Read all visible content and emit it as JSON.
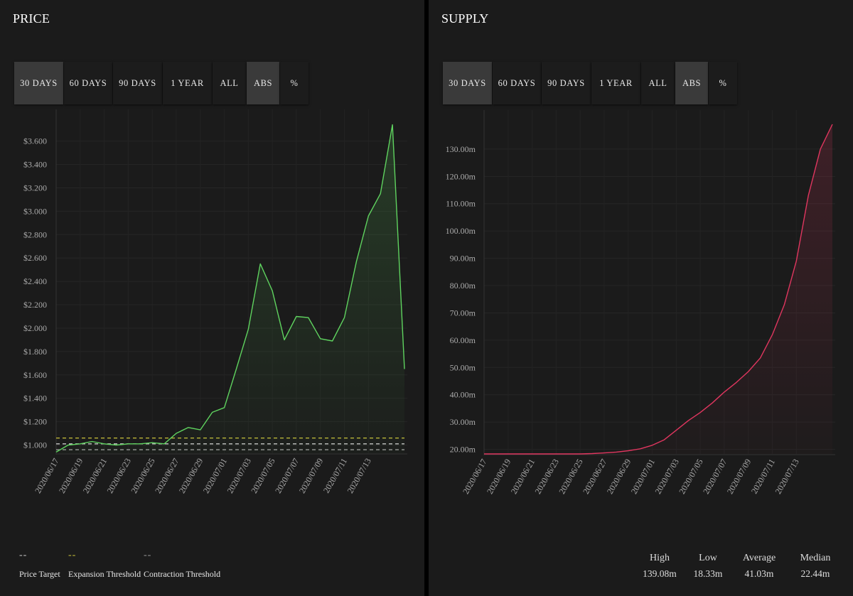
{
  "panels": {
    "price": {
      "title": "PRICE",
      "buttons": [
        {
          "label": "30 DAYS",
          "active": true
        },
        {
          "label": "60 DAYS",
          "active": false
        },
        {
          "label": "90 DAYS",
          "active": false
        },
        {
          "label": "1 YEAR",
          "active": false
        },
        {
          "label": "ALL",
          "active": false
        },
        {
          "label": "ABS",
          "active": true
        },
        {
          "label": "%",
          "active": false
        }
      ],
      "legend": [
        {
          "label": "Price Target",
          "dash": "--",
          "color": "#c8c8c8"
        },
        {
          "label": "Expansion Threshold",
          "dash": "--",
          "color": "#c9c23a"
        },
        {
          "label": "Contraction Threshold",
          "dash": "--",
          "color": "#9a9a9a"
        }
      ]
    },
    "supply": {
      "title": "SUPPLY",
      "buttons": [
        {
          "label": "30 DAYS",
          "active": true
        },
        {
          "label": "60 DAYS",
          "active": false
        },
        {
          "label": "90 DAYS",
          "active": false
        },
        {
          "label": "1 YEAR",
          "active": false
        },
        {
          "label": "ALL",
          "active": false
        },
        {
          "label": "ABS",
          "active": true
        },
        {
          "label": "%",
          "active": false
        }
      ],
      "stats": [
        {
          "label": "High",
          "value": "139.08m"
        },
        {
          "label": "Low",
          "value": "18.33m"
        },
        {
          "label": "Average",
          "value": "41.03m"
        },
        {
          "label": "Median",
          "value": "22.44m"
        }
      ]
    }
  },
  "chart_data": [
    {
      "type": "area",
      "title": "PRICE",
      "x_ticks": [
        "2020/06/17",
        "2020/06/19",
        "2020/06/21",
        "2020/06/23",
        "2020/06/25",
        "2020/06/27",
        "2020/06/29",
        "2020/07/01",
        "2020/07/03",
        "2020/07/05",
        "2020/07/07",
        "2020/07/09",
        "2020/07/11",
        "2020/07/13"
      ],
      "y_ticks": [
        "$1.000",
        "$1.200",
        "$1.400",
        "$1.600",
        "$1.800",
        "$2.000",
        "$2.200",
        "$2.400",
        "$2.600",
        "$2.800",
        "$3.000",
        "$3.200",
        "$3.400",
        "$3.600"
      ],
      "ylim": [
        0.93,
        3.75
      ],
      "color": "#5fd35f",
      "series": [
        {
          "x": [
            0,
            1,
            2,
            3,
            4,
            5,
            6,
            7,
            8,
            9,
            10,
            11,
            12,
            13,
            14,
            15,
            16,
            17,
            18,
            19,
            20,
            21,
            22,
            23,
            24,
            25,
            26,
            27,
            28,
            29
          ],
          "values": [
            0.94,
            1.0,
            1.01,
            1.03,
            1.01,
            1.0,
            1.01,
            1.01,
            1.02,
            1.01,
            1.1,
            1.15,
            1.13,
            1.28,
            1.32,
            1.65,
            1.99,
            2.55,
            2.32,
            1.9,
            2.1,
            2.09,
            1.91,
            1.89,
            2.09,
            2.57,
            2.96,
            3.15,
            3.74,
            1.65
          ]
        }
      ],
      "reference_lines": [
        {
          "value": 1.06,
          "color": "#c9c23a"
        },
        {
          "value": 1.01,
          "color": "#c8c8c8"
        },
        {
          "value": 0.96,
          "color": "#9a9a9a"
        }
      ]
    },
    {
      "type": "area",
      "title": "SUPPLY",
      "x_ticks": [
        "2020/06/17",
        "2020/06/19",
        "2020/06/21",
        "2020/06/23",
        "2020/06/25",
        "2020/06/27",
        "2020/06/29",
        "2020/07/01",
        "2020/07/03",
        "2020/07/05",
        "2020/07/07",
        "2020/07/09",
        "2020/07/11",
        "2020/07/13"
      ],
      "y_ticks": [
        "20.00m",
        "30.00m",
        "40.00m",
        "50.00m",
        "60.00m",
        "70.00m",
        "80.00m",
        "90.00m",
        "100.00m",
        "110.00m",
        "120.00m",
        "130.00m"
      ],
      "ylim": [
        18.33,
        139.08
      ],
      "color": "#e0365f",
      "series": [
        {
          "x": [
            0,
            1,
            2,
            3,
            4,
            5,
            6,
            7,
            8,
            9,
            10,
            11,
            12,
            13,
            14,
            15,
            16,
            17,
            18,
            19,
            20,
            21,
            22,
            23,
            24,
            25,
            26,
            27,
            28,
            29
          ],
          "values": [
            18.33,
            18.33,
            18.33,
            18.33,
            18.33,
            18.33,
            18.33,
            18.33,
            18.33,
            18.45,
            18.7,
            19.0,
            19.5,
            20.2,
            21.5,
            23.5,
            27.0,
            30.5,
            33.5,
            37.0,
            41.0,
            44.5,
            48.5,
            53.5,
            62.0,
            73.0,
            89.0,
            113.0,
            130.0,
            139.08
          ]
        }
      ]
    }
  ]
}
